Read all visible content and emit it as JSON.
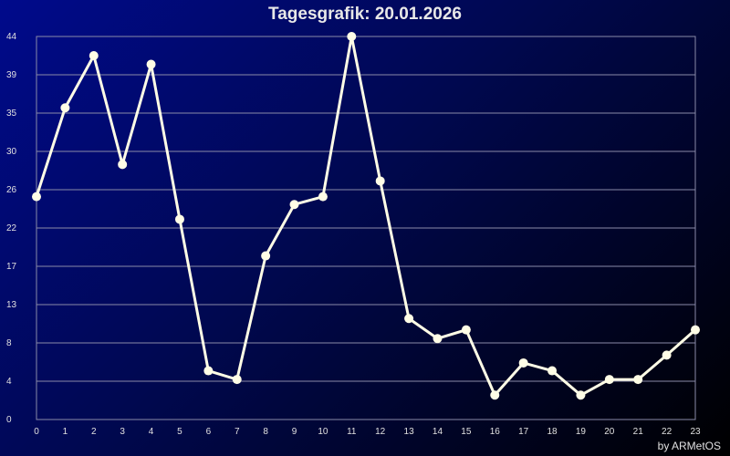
{
  "chart_data": {
    "type": "line",
    "title": "Tagesgrafik: 20.01.2026",
    "xlabel": "",
    "ylabel": "",
    "x": [
      0,
      1,
      2,
      3,
      4,
      5,
      6,
      7,
      8,
      9,
      10,
      11,
      12,
      13,
      14,
      15,
      16,
      17,
      18,
      19,
      20,
      21,
      22,
      23
    ],
    "series": [
      {
        "values": [
          25.6,
          35.8,
          41.8,
          29.3,
          40.8,
          23.0,
          5.6,
          4.6,
          18.8,
          24.7,
          25.6,
          44.0,
          27.4,
          11.6,
          9.3,
          10.3,
          2.8,
          6.5,
          5.6,
          2.8,
          4.6,
          4.6,
          7.4,
          10.3
        ],
        "color": "#fffde6"
      }
    ],
    "xlim": [
      0,
      23
    ],
    "ylim": [
      0,
      44
    ],
    "ytick_labels": [
      "0",
      "4",
      "8",
      "13",
      "17",
      "22",
      "26",
      "30",
      "35",
      "39",
      "44"
    ],
    "xtick_labels": [
      "0",
      "1",
      "2",
      "3",
      "4",
      "5",
      "6",
      "7",
      "8",
      "9",
      "10",
      "11",
      "12",
      "13",
      "14",
      "15",
      "16",
      "17",
      "18",
      "19",
      "20",
      "21",
      "22",
      "23"
    ],
    "grid": true,
    "legend": "none"
  },
  "credit": "by ARMetOS",
  "colors": {
    "background_start": "#000a8c",
    "background_end": "#000000",
    "grid": "#8a8aa8",
    "line": "#fffde6"
  }
}
